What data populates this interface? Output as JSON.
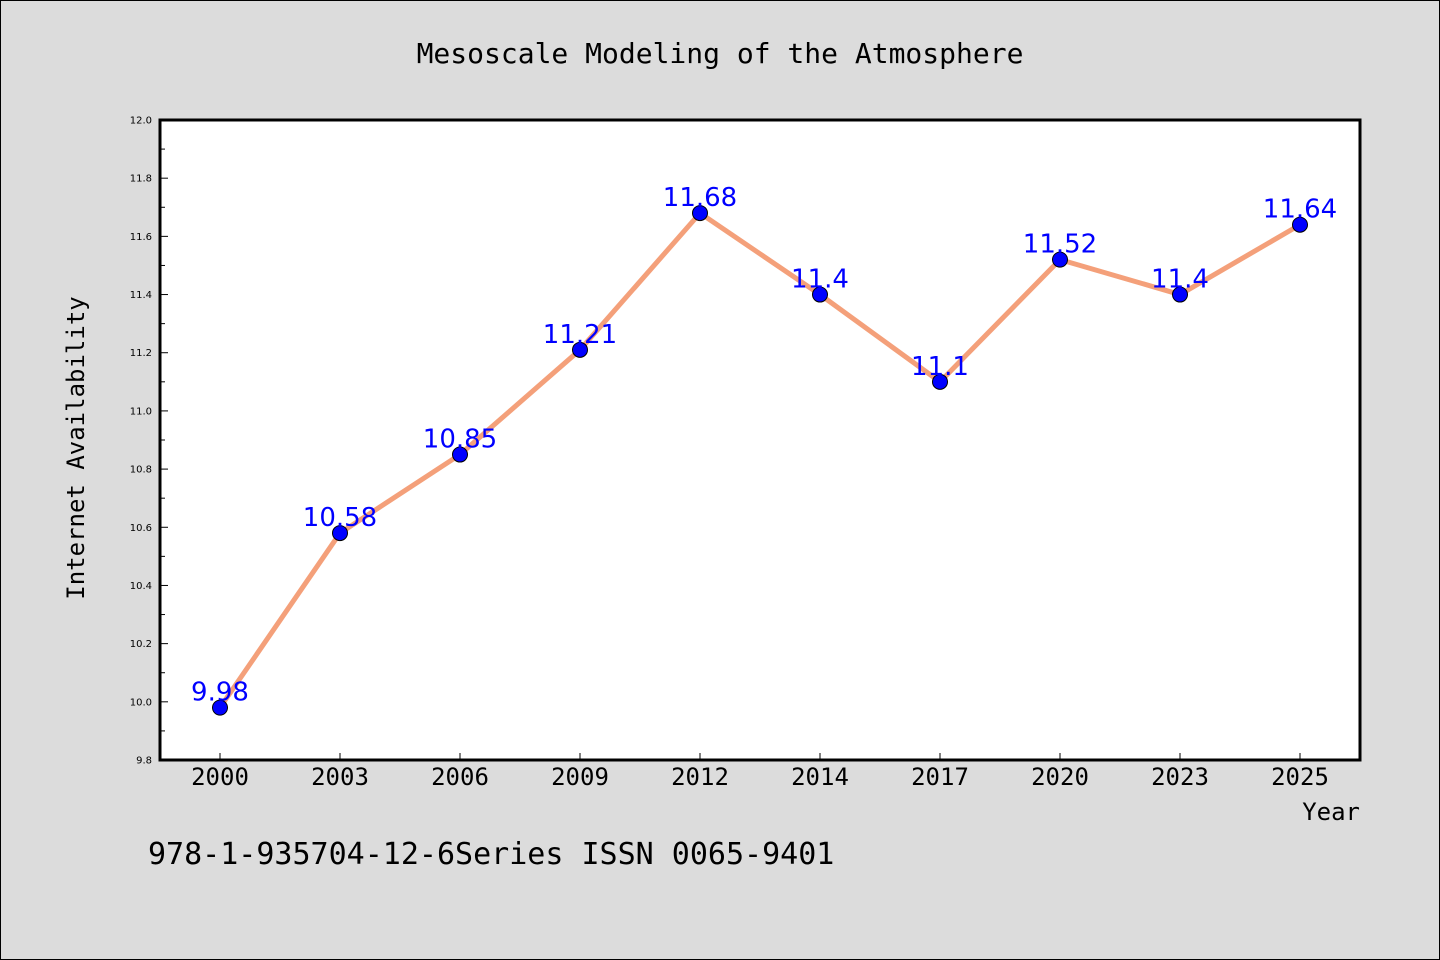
{
  "chart_data": {
    "type": "line",
    "title": "Mesoscale Modeling of the Atmosphere",
    "xlabel": "Year",
    "ylabel": "Internet Availability",
    "categories": [
      "2000",
      "2003",
      "2006",
      "2009",
      "2012",
      "2014",
      "2017",
      "2020",
      "2023",
      "2025"
    ],
    "values": [
      9.98,
      10.58,
      10.85,
      11.21,
      11.68,
      11.4,
      11.1,
      11.52,
      11.4,
      11.64
    ],
    "data_labels": [
      "9.98",
      "10.58",
      "10.85",
      "11.21",
      "11.68",
      "11.4",
      "11.1",
      "11.52",
      "11.4",
      "11.64"
    ],
    "ylim": [
      9.8,
      12.0
    ],
    "yticks": [
      "9.8",
      "10.0",
      "10.2",
      "10.4",
      "10.6",
      "10.8",
      "11.0",
      "11.2",
      "11.4",
      "11.6",
      "11.8",
      "12.0"
    ],
    "grid": false,
    "legend": false,
    "colors": {
      "line": "#f4a07a",
      "marker": "#0000ff",
      "data_label": "#0000ff",
      "background": "#dcdcdc",
      "plot_area": "#ffffff"
    }
  },
  "footer": "978-1-935704-12-6Series ISSN 0065-9401"
}
